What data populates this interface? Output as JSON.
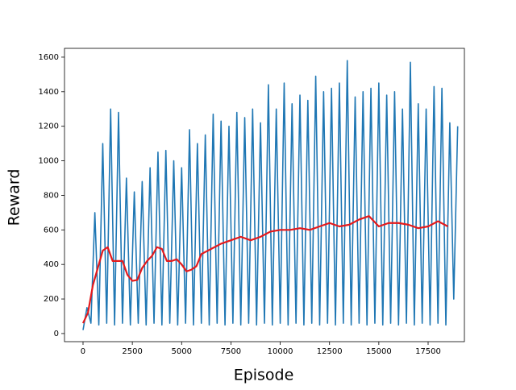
{
  "chart_data": {
    "type": "line",
    "x_label": "Episode",
    "y_label": "Reward",
    "xlim": [
      -940,
      19340
    ],
    "ylim": [
      -47,
      1651
    ],
    "xticks": [
      0,
      2500,
      5000,
      7500,
      10000,
      12500,
      15000,
      17500
    ],
    "yticks": [
      0,
      200,
      400,
      600,
      800,
      1000,
      1200,
      1400,
      1600
    ],
    "grid": false,
    "series": [
      {
        "color": "#1f77b4",
        "x": [
          0,
          200,
          400,
          600,
          800,
          1000,
          1200,
          1400,
          1600,
          1800,
          2000,
          2200,
          2400,
          2600,
          2800,
          3000,
          3200,
          3400,
          3600,
          3800,
          4000,
          4200,
          4400,
          4600,
          4800,
          5000,
          5200,
          5400,
          5600,
          5800,
          6000,
          6200,
          6400,
          6600,
          6800,
          7000,
          7200,
          7400,
          7600,
          7800,
          8000,
          8200,
          8400,
          8600,
          8800,
          9000,
          9200,
          9400,
          9600,
          9800,
          10000,
          10200,
          10400,
          10600,
          10800,
          11000,
          11200,
          11400,
          11600,
          11800,
          12000,
          12200,
          12400,
          12600,
          12800,
          13000,
          13200,
          13400,
          13600,
          13800,
          14000,
          14200,
          14400,
          14600,
          14800,
          15000,
          15200,
          15400,
          15600,
          15800,
          16000,
          16200,
          16400,
          16600,
          16800,
          17000,
          17200,
          17400,
          17600,
          17800,
          18000,
          18200,
          18400,
          18600,
          18800,
          19000
        ],
        "values": [
          20,
          150,
          60,
          700,
          50,
          1100,
          60,
          1300,
          50,
          1280,
          60,
          900,
          50,
          820,
          60,
          880,
          50,
          960,
          60,
          1050,
          50,
          1060,
          60,
          1000,
          50,
          960,
          60,
          1180,
          50,
          1100,
          60,
          1150,
          50,
          1270,
          60,
          1230,
          50,
          1200,
          60,
          1280,
          50,
          1250,
          60,
          1300,
          50,
          1220,
          60,
          1440,
          50,
          1300,
          60,
          1450,
          50,
          1330,
          60,
          1380,
          50,
          1350,
          60,
          1490,
          50,
          1400,
          60,
          1420,
          50,
          1450,
          60,
          1580,
          50,
          1370,
          60,
          1400,
          50,
          1420,
          60,
          1450,
          50,
          1380,
          60,
          1400,
          50,
          1300,
          60,
          1570,
          50,
          1330,
          60,
          1300,
          50,
          1430,
          60,
          1420,
          50,
          1220,
          200,
          1200
        ]
      },
      {
        "color": "#e41a1c",
        "x": [
          0,
          250,
          500,
          750,
          1000,
          1250,
          1500,
          1750,
          2000,
          2250,
          2500,
          2750,
          3000,
          3250,
          3500,
          3750,
          4000,
          4250,
          4500,
          4750,
          5000,
          5250,
          5500,
          5750,
          6000,
          6500,
          7000,
          7500,
          8000,
          8500,
          9000,
          9500,
          10000,
          10500,
          11000,
          11500,
          12000,
          12500,
          13000,
          13500,
          14000,
          14500,
          15000,
          15500,
          16000,
          16500,
          17000,
          17500,
          18000,
          18500
        ],
        "values": [
          60,
          120,
          280,
          380,
          480,
          500,
          420,
          420,
          420,
          340,
          305,
          310,
          380,
          420,
          450,
          500,
          490,
          420,
          420,
          430,
          400,
          360,
          370,
          390,
          460,
          490,
          520,
          540,
          560,
          540,
          560,
          590,
          600,
          600,
          610,
          600,
          620,
          640,
          620,
          630,
          660,
          680,
          620,
          640,
          640,
          630,
          610,
          620,
          650,
          620
        ]
      }
    ]
  }
}
